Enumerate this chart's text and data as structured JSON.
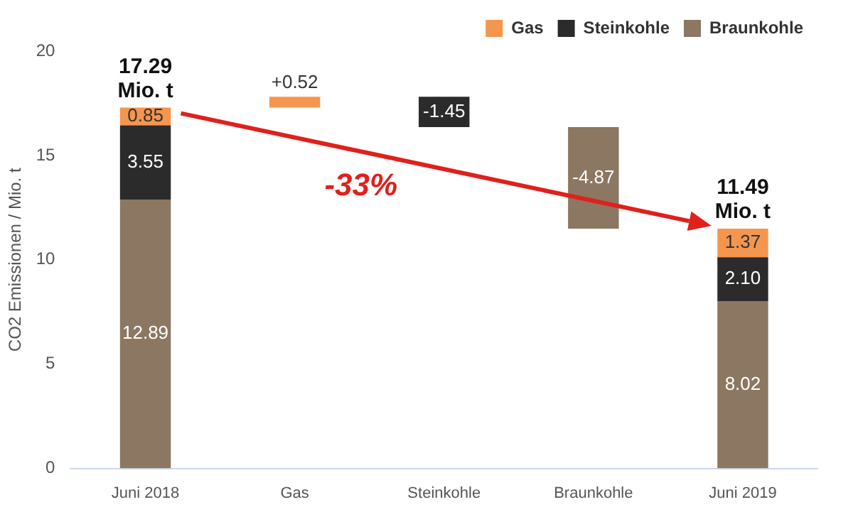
{
  "chart_data": {
    "type": "bar",
    "stacked": true,
    "categories": [
      "Juni 2018",
      "Gas",
      "Steinkohle",
      "Braunkohle",
      "Juni 2019"
    ],
    "series": [
      {
        "name": "Braunkohle",
        "color": "#8b7762",
        "values": [
          12.89,
          null,
          null,
          -4.87,
          8.02
        ],
        "base": [
          null,
          null,
          null,
          16.36,
          null
        ],
        "value_labels": [
          "12.89",
          null,
          null,
          "-4.87",
          "8.02"
        ]
      },
      {
        "name": "Steinkohle",
        "color": "#2b2b2b",
        "values": [
          3.55,
          null,
          -1.45,
          null,
          2.1
        ],
        "base": [
          null,
          null,
          17.81,
          null,
          null
        ],
        "value_labels": [
          "3.55",
          null,
          "-1.45",
          null,
          "2.10"
        ]
      },
      {
        "name": "Gas",
        "color": "#f5964f",
        "values": [
          0.85,
          0.52,
          null,
          null,
          1.37
        ],
        "base": [
          null,
          17.29,
          null,
          null,
          null
        ],
        "value_labels": [
          "0.85",
          "+0.52",
          null,
          null,
          "1.37"
        ]
      }
    ],
    "totals": [
      "17.29 Mio. t",
      null,
      null,
      null,
      "11.49 Mio. t"
    ],
    "annotations": [
      "-33%"
    ],
    "ylabel": "CO2 Emissionen / Mio. t",
    "ylim": [
      0,
      20
    ],
    "yticks": [
      0,
      5,
      10,
      15,
      20
    ],
    "grid": false,
    "legend": "top right"
  }
}
